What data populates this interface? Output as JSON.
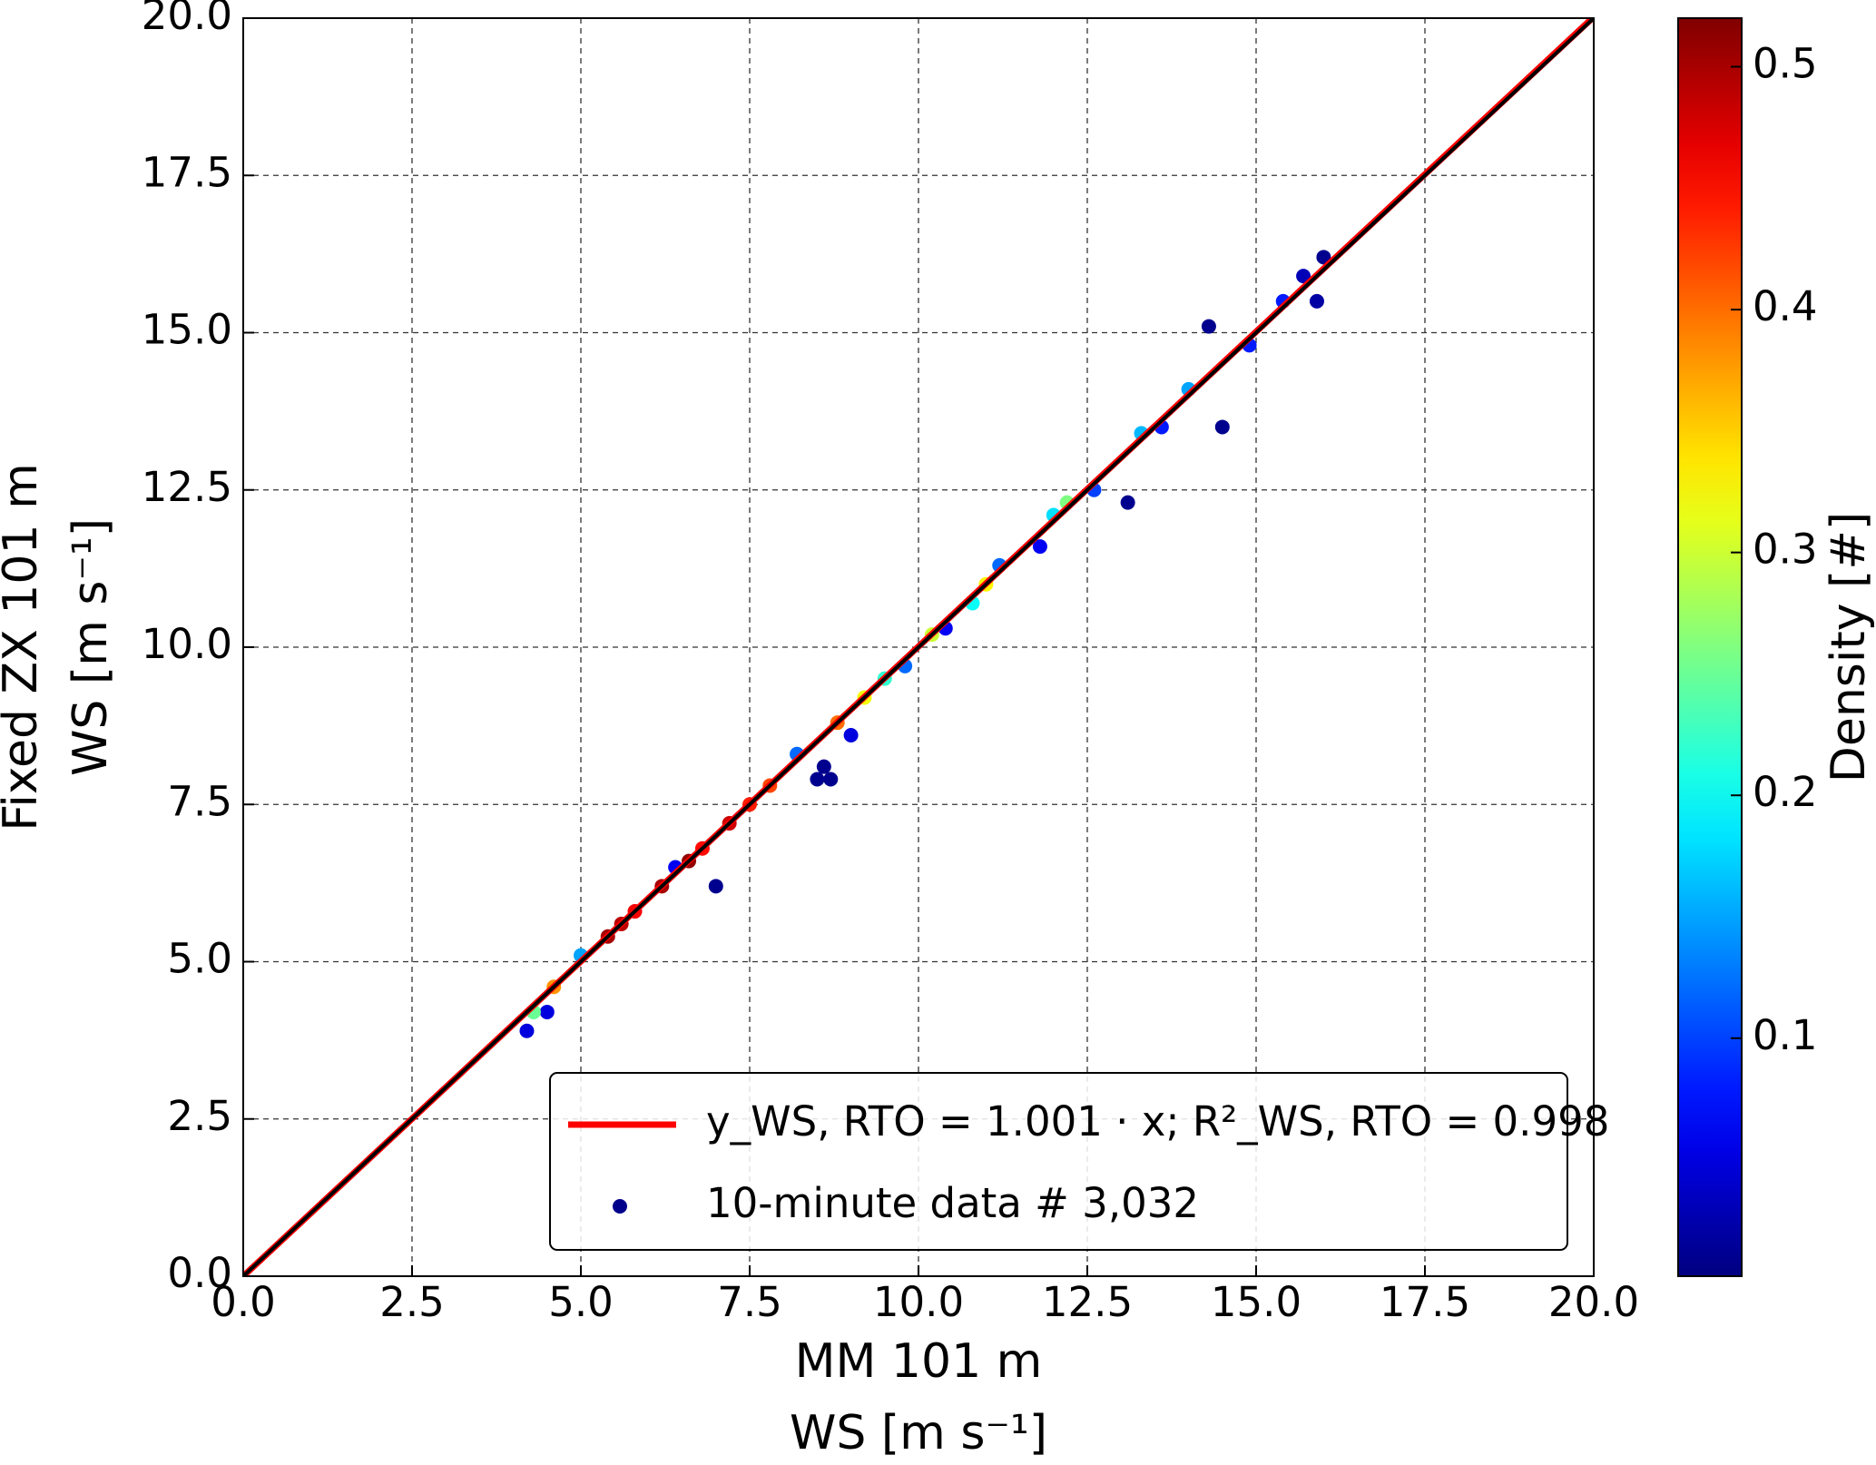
{
  "chart_data": {
    "type": "scatter",
    "xlabel": [
      "MM 101 m",
      "WS [m s⁻¹]"
    ],
    "ylabel": [
      "Fixed ZX 101 m",
      "WS [m s⁻¹]"
    ],
    "xlim": [
      0,
      20
    ],
    "ylim": [
      0,
      20
    ],
    "xticks": [
      {
        "value": 0,
        "label": "0.0"
      },
      2.5,
      {
        "value": 5,
        "label": "5.0"
      },
      7.5,
      {
        "value": 10,
        "label": "10.0"
      },
      12.5,
      {
        "value": 15,
        "label": "15.0"
      },
      17.5,
      {
        "value": 20,
        "label": "20.0"
      }
    ],
    "yticks": [
      {
        "value": 0,
        "label": "0.0"
      },
      2.5,
      {
        "value": 5,
        "label": "5.0"
      },
      7.5,
      {
        "value": 10,
        "label": "10.0"
      },
      12.5,
      {
        "value": 15,
        "label": "15.0"
      },
      17.5,
      {
        "value": 20,
        "label": "20.0"
      }
    ],
    "grid": true,
    "fit": {
      "name": "y_WS, RTO = 1.001 · x; R²_WS, RTO = 0.998",
      "slope": 1.001,
      "color": "#ff0000"
    },
    "series": [
      {
        "name": "10-minute data # 3,032",
        "color": "#00008b",
        "x": [
          8.5,
          8.7,
          8.6,
          7.0,
          13.1,
          14.5,
          14.3,
          16.0,
          15.9,
          15.7,
          4.2,
          4.5,
          9.0,
          10.4,
          11.8,
          6.4,
          13.6,
          14.9,
          15.4,
          12.6,
          11.2,
          9.8,
          8.2,
          5.0,
          14.0,
          13.3,
          12.0,
          10.8,
          9.5,
          4.3,
          12.2,
          10.2,
          9.2,
          11.0,
          4.6,
          8.8,
          7.8,
          6.8,
          5.8,
          7.2,
          6.2,
          5.4,
          6.6,
          7.5,
          5.6
        ],
        "y": [
          7.9,
          7.9,
          8.1,
          6.2,
          12.3,
          13.5,
          15.1,
          16.2,
          15.5,
          15.9,
          3.9,
          4.2,
          8.6,
          10.3,
          11.6,
          6.5,
          13.5,
          14.8,
          15.5,
          12.5,
          11.3,
          9.7,
          8.3,
          5.1,
          14.1,
          13.4,
          12.1,
          10.7,
          9.5,
          4.2,
          12.3,
          10.2,
          9.2,
          11.0,
          4.6,
          8.8,
          7.8,
          6.8,
          5.8,
          7.2,
          6.2,
          5.4,
          6.6,
          7.5,
          5.6
        ],
        "density": [
          0.01,
          0.01,
          0.01,
          0.01,
          0.01,
          0.01,
          0.01,
          0.01,
          0.02,
          0.03,
          0.05,
          0.05,
          0.05,
          0.06,
          0.06,
          0.06,
          0.08,
          0.08,
          0.08,
          0.1,
          0.12,
          0.12,
          0.12,
          0.15,
          0.15,
          0.16,
          0.18,
          0.2,
          0.22,
          0.25,
          0.26,
          0.3,
          0.32,
          0.33,
          0.38,
          0.4,
          0.42,
          0.45,
          0.46,
          0.48,
          0.5,
          0.5,
          0.51,
          0.44,
          0.49
        ]
      }
    ],
    "colorbar": {
      "label": "Density [#]",
      "colormap": "jet",
      "lim": [
        0.002,
        0.52
      ],
      "ticks": [
        0.1,
        0.2,
        0.3,
        0.4,
        0.5
      ]
    }
  }
}
